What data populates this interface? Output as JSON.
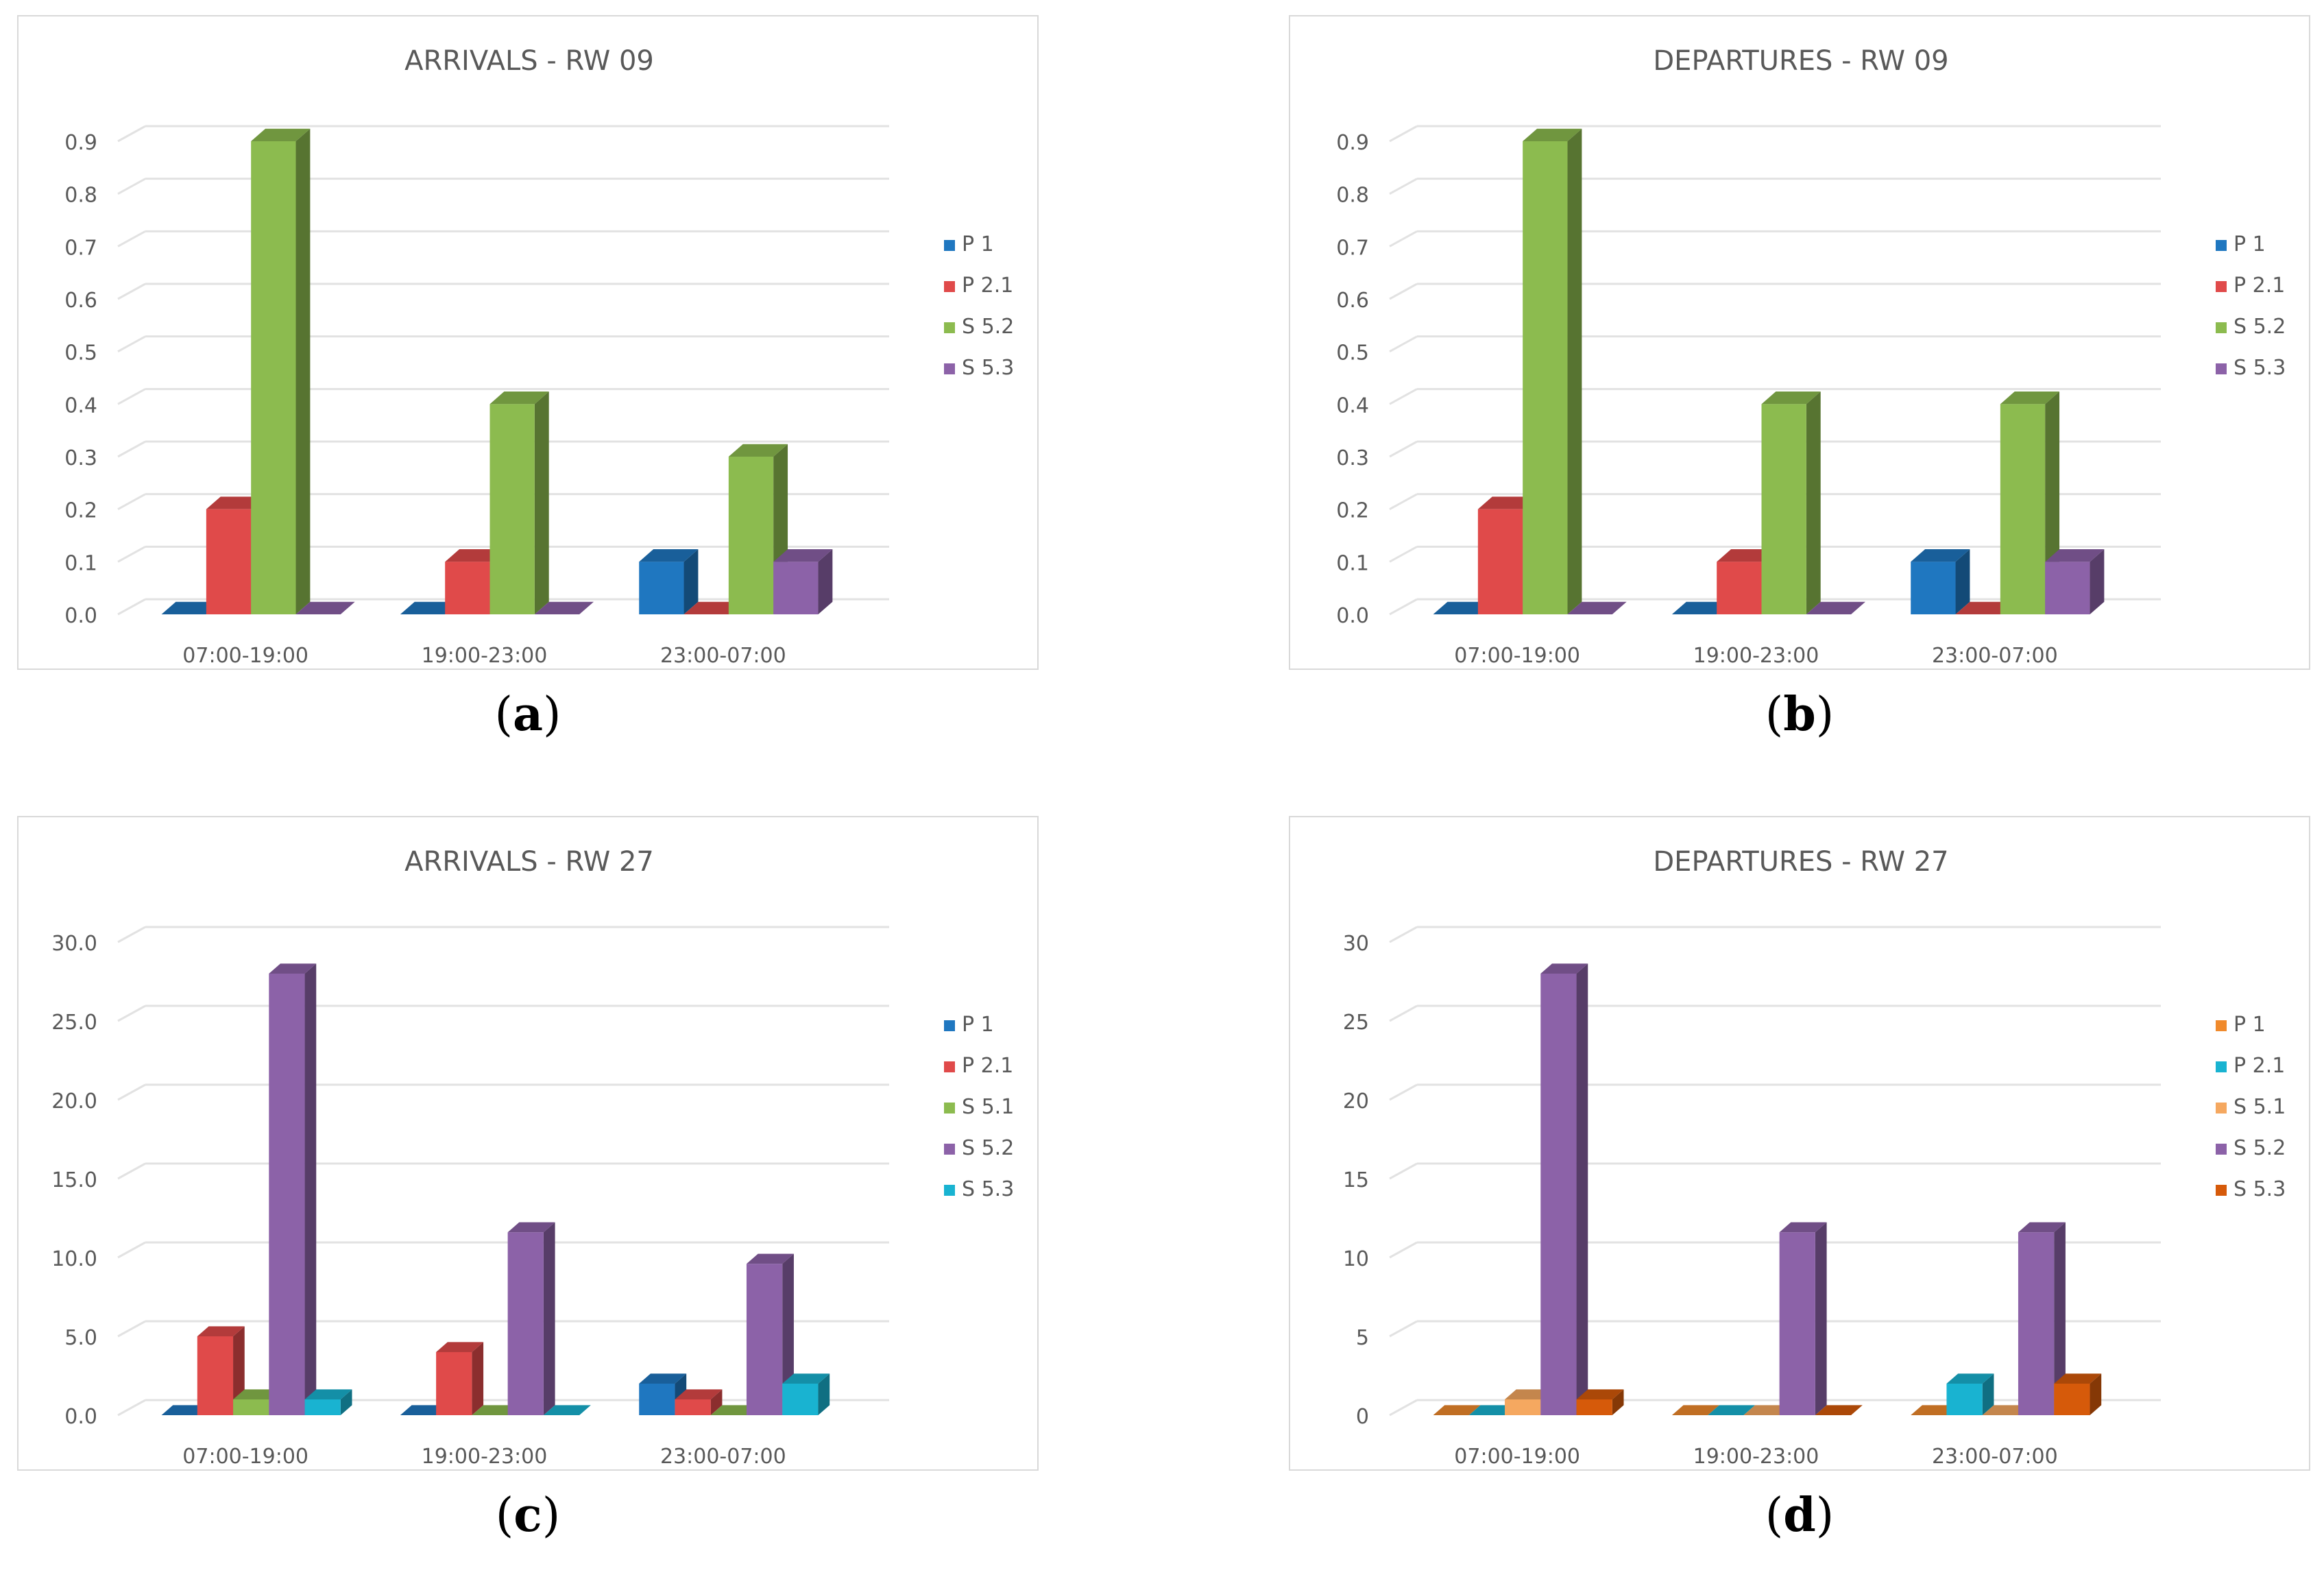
{
  "chart_data": [
    {
      "type": "bar",
      "panel": "a",
      "title": "ARRIVALS - RW 09",
      "caption_letter": "a",
      "categories": [
        "07:00-19:00",
        "19:00-23:00",
        "23:00-07:00"
      ],
      "ylim": [
        0,
        0.9
      ],
      "yticks": [
        "0.0",
        "0.1",
        "0.2",
        "0.3",
        "0.4",
        "0.5",
        "0.6",
        "0.7",
        "0.8",
        "0.9"
      ],
      "series": [
        {
          "name": "P 1",
          "color": "#1f77c0",
          "values": [
            0,
            0,
            0.1
          ]
        },
        {
          "name": "P 2.1",
          "color": "#e04a4a",
          "values": [
            0.2,
            0.1,
            0
          ]
        },
        {
          "name": "S 5.2",
          "color": "#8cbb4f",
          "values": [
            0.9,
            0.4,
            0.3
          ]
        },
        {
          "name": "S 5.3",
          "color": "#8c62a8",
          "values": [
            0,
            0,
            0.1
          ]
        }
      ],
      "legend_position": "right"
    },
    {
      "type": "bar",
      "panel": "b",
      "title": "DEPARTURES - RW 09",
      "caption_letter": "b",
      "categories": [
        "07:00-19:00",
        "19:00-23:00",
        "23:00-07:00"
      ],
      "ylim": [
        0,
        0.9
      ],
      "yticks": [
        "0.0",
        "0.1",
        "0.2",
        "0.3",
        "0.4",
        "0.5",
        "0.6",
        "0.7",
        "0.8",
        "0.9"
      ],
      "series": [
        {
          "name": "P 1",
          "color": "#1f77c0",
          "values": [
            0,
            0,
            0.1
          ]
        },
        {
          "name": "P 2.1",
          "color": "#e04a4a",
          "values": [
            0.2,
            0.1,
            0
          ]
        },
        {
          "name": "S 5.2",
          "color": "#8cbb4f",
          "values": [
            0.9,
            0.4,
            0.4
          ]
        },
        {
          "name": "S 5.3",
          "color": "#8c62a8",
          "values": [
            0,
            0,
            0.1
          ]
        }
      ],
      "legend_position": "right"
    },
    {
      "type": "bar",
      "panel": "c",
      "title": "ARRIVALS - RW 27",
      "caption_letter": "c",
      "categories": [
        "07:00-19:00",
        "19:00-23:00",
        "23:00-07:00"
      ],
      "ylim": [
        0,
        30
      ],
      "yticks": [
        "0.0",
        "5.0",
        "10.0",
        "15.0",
        "20.0",
        "25.0",
        "30.0"
      ],
      "series": [
        {
          "name": "P 1",
          "color": "#1f77c0",
          "values": [
            0,
            0,
            2
          ]
        },
        {
          "name": "P 2.1",
          "color": "#e04a4a",
          "values": [
            5,
            4,
            1
          ]
        },
        {
          "name": "S 5.1",
          "color": "#8cbb4f",
          "values": [
            1,
            0,
            0
          ]
        },
        {
          "name": "S 5.2",
          "color": "#8c62a8",
          "values": [
            28,
            11.6,
            9.6
          ]
        },
        {
          "name": "S 5.3",
          "color": "#19b3d1",
          "values": [
            1,
            0,
            2
          ]
        }
      ],
      "legend_position": "right"
    },
    {
      "type": "bar",
      "panel": "d",
      "title": "DEPARTURES - RW 27",
      "caption_letter": "d",
      "categories": [
        "07:00-19:00",
        "19:00-23:00",
        "23:00-07:00"
      ],
      "ylim": [
        0,
        30
      ],
      "yticks": [
        "0",
        "5",
        "10",
        "15",
        "20",
        "25",
        "30"
      ],
      "series": [
        {
          "name": "P 1",
          "color": "#f08a2c",
          "values": [
            0,
            0,
            0
          ]
        },
        {
          "name": "P 2.1",
          "color": "#19b3d1",
          "values": [
            0,
            0,
            2
          ]
        },
        {
          "name": "S 5.1",
          "color": "#f5a860",
          "values": [
            1,
            0,
            0
          ]
        },
        {
          "name": "S 5.2",
          "color": "#8c62a8",
          "values": [
            28,
            11.6,
            11.6
          ]
        },
        {
          "name": "S 5.3",
          "color": "#d65a0a",
          "values": [
            1,
            0,
            2
          ]
        }
      ],
      "legend_position": "right"
    }
  ]
}
